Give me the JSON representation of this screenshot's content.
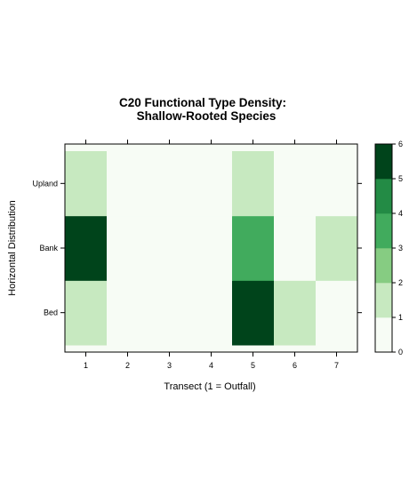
{
  "chart_data": {
    "type": "heatmap",
    "title": "C20 Functional Type Density:",
    "subtitle": "Shallow-Rooted Species",
    "xlabel": "Transect (1 = Outfall)",
    "ylabel": "Horizontal Distribution",
    "x_categories": [
      "1",
      "2",
      "3",
      "4",
      "5",
      "6",
      "7"
    ],
    "y_categories": [
      "Bed",
      "Bank",
      "Upland"
    ],
    "values": [
      [
        2,
        0,
        1,
        1,
        6,
        2,
        1
      ],
      [
        6,
        0,
        1,
        1,
        4,
        1,
        2
      ],
      [
        2,
        0,
        1,
        1,
        2,
        0,
        0
      ]
    ],
    "colorbar": {
      "min": 0,
      "max": 6,
      "ticks": [
        "0",
        "1",
        "2",
        "3",
        "4",
        "5",
        "6"
      ],
      "colors": [
        "#f7fcf5",
        "#c7e9c0",
        "#86cc82",
        "#41ab5d",
        "#238b45",
        "#00441b"
      ]
    },
    "legend_position": "right",
    "grid": false
  }
}
